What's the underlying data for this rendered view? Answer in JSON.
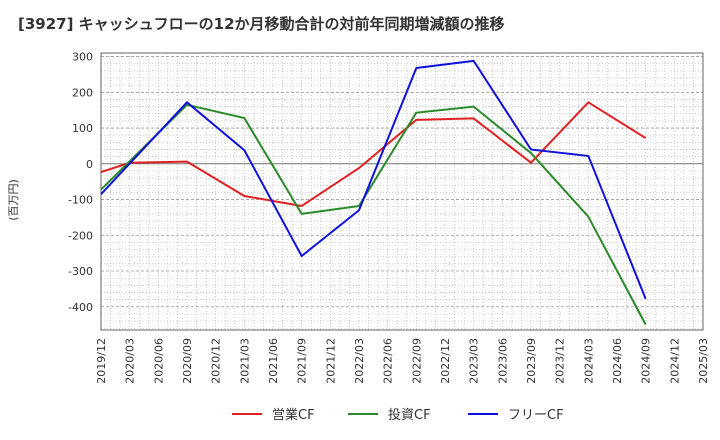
{
  "chart_data": {
    "type": "line",
    "title": "[3927]  キャッシュフローの12か月移動合計の対前年同期増減額の推移",
    "ylabel": "(百万円)",
    "xlabel": "",
    "ylim": [
      -465,
      310
    ],
    "yticks": [
      300,
      200,
      100,
      0,
      -100,
      -200,
      -300,
      -400
    ],
    "x": [
      "2019/12",
      "2020/03",
      "2020/06",
      "2020/09",
      "2020/12",
      "2021/03",
      "2021/06",
      "2021/09",
      "2021/12",
      "2022/03",
      "2022/06",
      "2022/09",
      "2022/12",
      "2023/03",
      "2023/06",
      "2023/09",
      "2023/12",
      "2024/03",
      "2024/06",
      "2024/09",
      "2024/12",
      "2025/03"
    ],
    "grid": true,
    "legend_position": "bottom",
    "series": [
      {
        "name": "営業CF",
        "color": "#e02020",
        "values": [
          -23,
          3,
          null,
          6,
          null,
          -90,
          null,
          -118,
          null,
          -12,
          null,
          123,
          null,
          127,
          null,
          3,
          null,
          172,
          null,
          72,
          null,
          null
        ]
      },
      {
        "name": "投資CF",
        "color": "#2a8a2a",
        "values": [
          -72,
          null,
          null,
          165,
          null,
          128,
          null,
          -140,
          null,
          -118,
          null,
          143,
          null,
          160,
          null,
          30,
          null,
          -148,
          null,
          -450,
          null,
          null
        ]
      },
      {
        "name": "フリーCF",
        "color": "#1010dd",
        "values": [
          -85,
          null,
          null,
          172,
          null,
          38,
          null,
          -258,
          null,
          -130,
          null,
          268,
          null,
          288,
          null,
          40,
          null,
          22,
          null,
          -378,
          null,
          null
        ]
      }
    ]
  }
}
